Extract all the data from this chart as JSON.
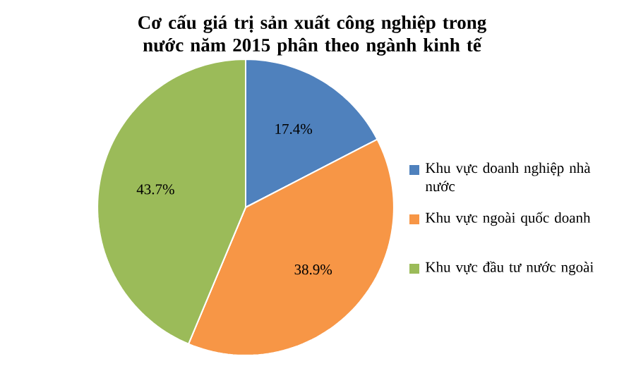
{
  "chart_data": {
    "type": "pie",
    "title": "Cơ cấu giá trị sản xuất công nghiệp trong nước năm 2015 phân theo ngành kinh tế",
    "categories": [
      "Khu vực doanh nghiệp nhà nước",
      "Khu vực ngoài quốc doanh",
      "Khu vực đầu tư nước ngoài"
    ],
    "values": [
      17.4,
      38.9,
      43.7
    ],
    "colors": [
      "#4f81bd",
      "#f79646",
      "#9bbb59"
    ],
    "value_labels": [
      "17.4%",
      "38.9%",
      "43.7%"
    ],
    "legend": "right"
  }
}
